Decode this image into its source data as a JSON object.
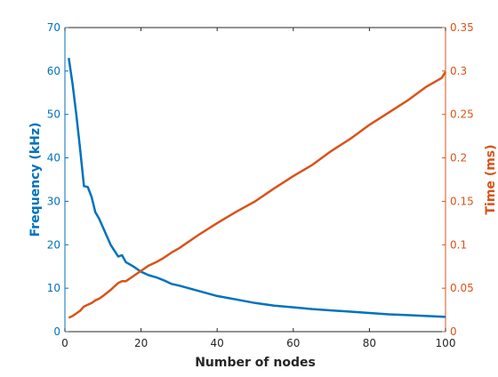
{
  "chart_data": {
    "type": "line",
    "xlabel": "Number of nodes",
    "x_ticks": [
      0,
      20,
      40,
      60,
      80,
      100
    ],
    "xlim": [
      0,
      100
    ],
    "grid": false,
    "left_axis": {
      "label": "Frequency (kHz)",
      "ylim": [
        0,
        70
      ],
      "ticks": [
        0,
        10,
        20,
        30,
        40,
        50,
        60,
        70
      ],
      "color": "#0072BD"
    },
    "right_axis": {
      "label": "Time (ms)",
      "ylim": [
        0,
        0.35
      ],
      "ticks": [
        "0",
        "0.05",
        "0.1",
        "0.15",
        "0.2",
        "0.25",
        "0.3",
        "0.35"
      ],
      "tick_values": [
        0,
        0.05,
        0.1,
        0.15,
        0.2,
        0.25,
        0.3,
        0.35
      ],
      "color": "#D95319"
    },
    "series": [
      {
        "axis": "left",
        "color": "#0072BD",
        "x": [
          1,
          2,
          3,
          4,
          5,
          6,
          7,
          8,
          9,
          10,
          12,
          14,
          15,
          16,
          18,
          20,
          22,
          24,
          26,
          28,
          30,
          35,
          40,
          45,
          50,
          55,
          60,
          65,
          70,
          75,
          80,
          85,
          90,
          95,
          100
        ],
        "y": [
          63,
          57,
          50,
          42,
          33.5,
          33.3,
          31,
          27.5,
          26,
          24,
          20,
          17.3,
          17.6,
          16,
          15,
          13.8,
          13,
          12.5,
          11.8,
          11,
          10.6,
          9.4,
          8.2,
          7.4,
          6.6,
          6.0,
          5.6,
          5.2,
          4.9,
          4.6,
          4.3,
          4.0,
          3.8,
          3.6,
          3.4
        ]
      },
      {
        "axis": "right",
        "color": "#D95319",
        "x": [
          1,
          2,
          3,
          4,
          5,
          6,
          7,
          8,
          9,
          10,
          12,
          14,
          15,
          16,
          18,
          20,
          22,
          24,
          26,
          28,
          30,
          35,
          40,
          45,
          50,
          55,
          60,
          65,
          70,
          75,
          80,
          85,
          90,
          95,
          99,
          100
        ],
        "y": [
          0.016,
          0.018,
          0.021,
          0.024,
          0.029,
          0.031,
          0.033,
          0.036,
          0.038,
          0.041,
          0.048,
          0.056,
          0.058,
          0.058,
          0.064,
          0.07,
          0.076,
          0.08,
          0.085,
          0.091,
          0.096,
          0.111,
          0.125,
          0.138,
          0.15,
          0.165,
          0.179,
          0.192,
          0.208,
          0.222,
          0.238,
          0.252,
          0.266,
          0.282,
          0.292,
          0.299
        ]
      }
    ]
  }
}
